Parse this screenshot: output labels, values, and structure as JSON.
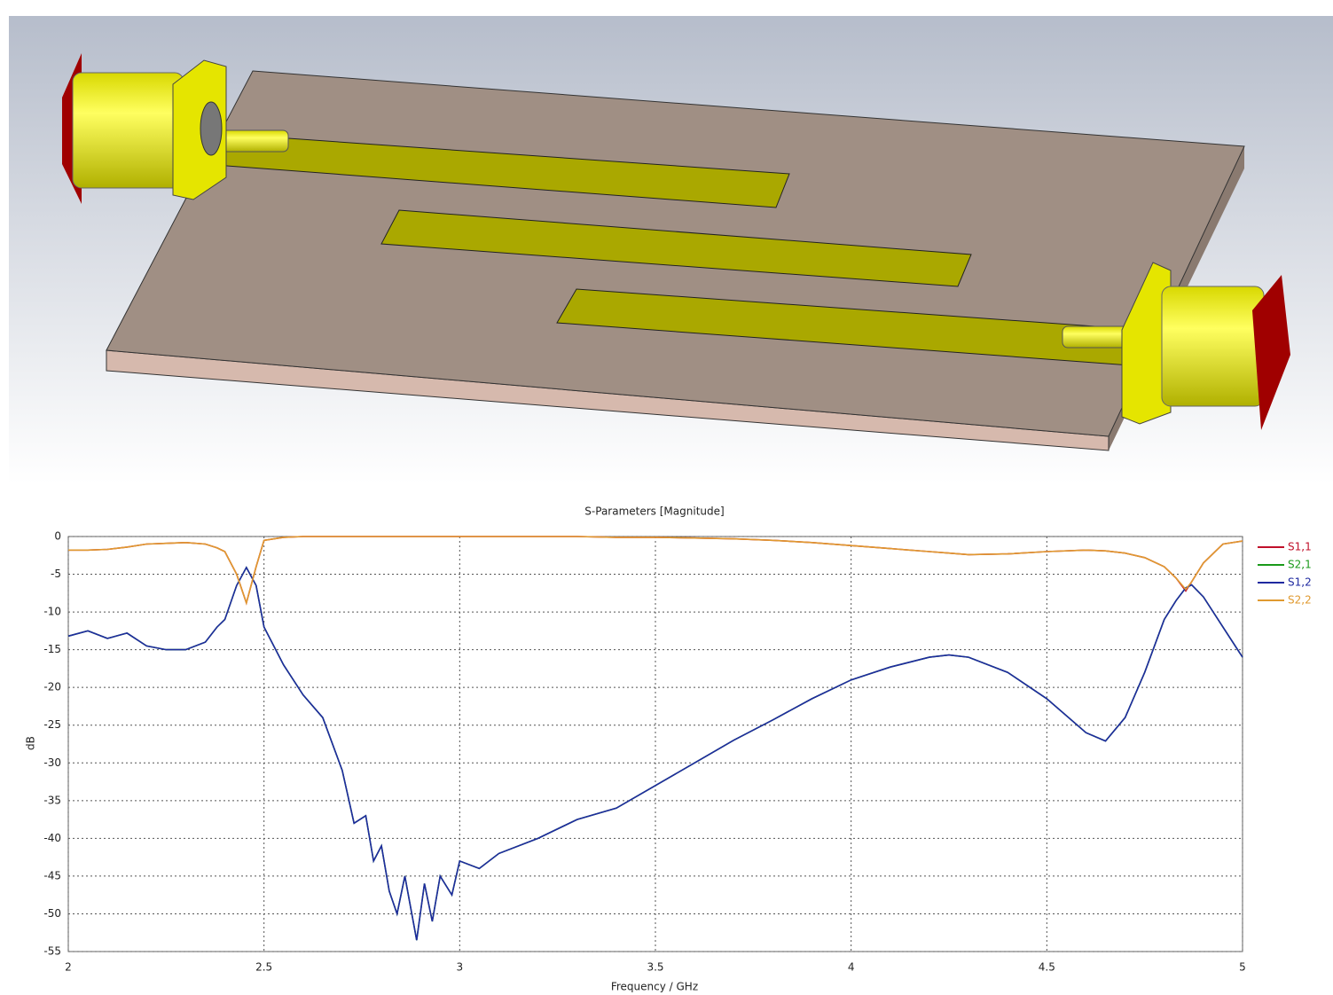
{
  "chart_data": {
    "type": "line",
    "title": "S-Parameters [Magnitude]",
    "x_label": "Frequency / GHz",
    "y_label": "dB",
    "xlim": [
      2,
      5
    ],
    "ylim": [
      -55,
      0
    ],
    "xticks": [
      2,
      2.5,
      3,
      3.5,
      4,
      4.5,
      5
    ],
    "yticks": [
      0,
      -5,
      -10,
      -15,
      -20,
      -25,
      -30,
      -35,
      -40,
      -45,
      -50,
      -55
    ],
    "grid": true,
    "legend": "right",
    "x": [
      2.0,
      2.05,
      2.1,
      2.15,
      2.2,
      2.25,
      2.3,
      2.35,
      2.38,
      2.4,
      2.43,
      2.455,
      2.48,
      2.5,
      2.55,
      2.6,
      2.65,
      2.7,
      2.73,
      2.76,
      2.78,
      2.8,
      2.82,
      2.84,
      2.86,
      2.89,
      2.91,
      2.93,
      2.95,
      2.98,
      3.0,
      3.05,
      3.1,
      3.2,
      3.3,
      3.4,
      3.5,
      3.6,
      3.7,
      3.8,
      3.9,
      4.0,
      4.1,
      4.2,
      4.25,
      4.3,
      4.4,
      4.5,
      4.6,
      4.65,
      4.7,
      4.75,
      4.8,
      4.83,
      4.855,
      4.87,
      4.9,
      4.95,
      5.0
    ],
    "series": [
      {
        "name": "S1,1",
        "color": "#c0102a",
        "values": [
          -1.8,
          -1.8,
          -1.7,
          -1.4,
          -1.0,
          -0.9,
          -0.8,
          -1.0,
          -1.5,
          -2.0,
          -5,
          -8.8,
          -4,
          -0.5,
          -0.1,
          0,
          0,
          0,
          0,
          0,
          0,
          0,
          0,
          0,
          0,
          0,
          0,
          0,
          0,
          0,
          0,
          0,
          0,
          0,
          0,
          -0.1,
          -0.1,
          -0.2,
          -0.3,
          -0.5,
          -0.8,
          -1.2,
          -1.6,
          -2,
          -2.2,
          -2.4,
          -2.3,
          -2.0,
          -1.8,
          -1.9,
          -2.2,
          -2.8,
          -4,
          -5.5,
          -7.2,
          -6,
          -3.5,
          -1,
          -0.6
        ]
      },
      {
        "name": "S2,1",
        "color": "#1a9a1a",
        "values": [
          -13.2,
          -12.5,
          -13.5,
          -12.8,
          -14.5,
          -15,
          -15,
          -14,
          -12,
          -11,
          -6.5,
          -4.1,
          -6.5,
          -12,
          -17,
          -21,
          -24,
          -31,
          -38,
          -37,
          -43,
          -41,
          -47,
          -50,
          -45,
          -53.5,
          -46,
          -51,
          -45,
          -47.5,
          -43,
          -44,
          -42,
          -40,
          -37.5,
          -36,
          -33,
          -30,
          -27,
          -24.3,
          -21.5,
          -19,
          -17.3,
          -16,
          -15.7,
          -16,
          -18,
          -21.5,
          -26,
          -27.1,
          -24,
          -18,
          -11,
          -8.5,
          -6.8,
          -6.4,
          -8,
          -12,
          -16
        ]
      },
      {
        "name": "S1,2",
        "color": "#1f2aa0",
        "values": [
          -13.2,
          -12.5,
          -13.5,
          -12.8,
          -14.5,
          -15,
          -15,
          -14,
          -12,
          -11,
          -6.5,
          -4.1,
          -6.5,
          -12,
          -17,
          -21,
          -24,
          -31,
          -38,
          -37,
          -43,
          -41,
          -47,
          -50,
          -45,
          -53.5,
          -46,
          -51,
          -45,
          -47.5,
          -43,
          -44,
          -42,
          -40,
          -37.5,
          -36,
          -33,
          -30,
          -27,
          -24.3,
          -21.5,
          -19,
          -17.3,
          -16,
          -15.7,
          -16,
          -18,
          -21.5,
          -26,
          -27.1,
          -24,
          -18,
          -11,
          -8.5,
          -6.8,
          -6.4,
          -8,
          -12,
          -16
        ]
      },
      {
        "name": "S2,2",
        "color": "#e09a30",
        "values": [
          -1.8,
          -1.8,
          -1.7,
          -1.4,
          -1.0,
          -0.9,
          -0.8,
          -1.0,
          -1.5,
          -2.0,
          -5,
          -8.8,
          -4,
          -0.5,
          -0.1,
          0,
          0,
          0,
          0,
          0,
          0,
          0,
          0,
          0,
          0,
          0,
          0,
          0,
          0,
          0,
          0,
          0,
          0,
          0,
          0,
          -0.1,
          -0.1,
          -0.2,
          -0.3,
          -0.5,
          -0.8,
          -1.2,
          -1.6,
          -2,
          -2.2,
          -2.4,
          -2.3,
          -2.0,
          -1.8,
          -1.9,
          -2.2,
          -2.8,
          -4,
          -5.5,
          -7,
          -6,
          -3.5,
          -1,
          -0.6
        ]
      }
    ]
  }
}
